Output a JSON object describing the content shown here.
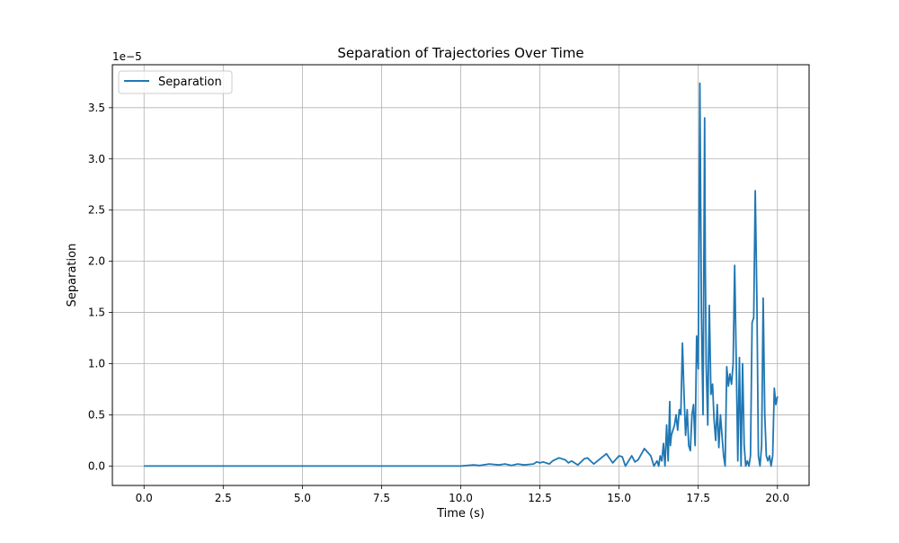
{
  "chart_data": {
    "type": "line",
    "title": "Separation of Trajectories Over Time",
    "xlabel": "Time (s)",
    "ylabel": "Separation",
    "offset_text": "1e−5",
    "scale": 1e-05,
    "xlim": [
      -1.0,
      21.0
    ],
    "ylim": [
      -0.19,
      3.92
    ],
    "xticks": [
      0.0,
      2.5,
      5.0,
      7.5,
      10.0,
      12.5,
      15.0,
      17.5,
      20.0
    ],
    "xtick_labels": [
      "0.0",
      "2.5",
      "5.0",
      "7.5",
      "10.0",
      "12.5",
      "15.0",
      "17.5",
      "20.0"
    ],
    "yticks": [
      0.0,
      0.5,
      1.0,
      1.5,
      2.0,
      2.5,
      3.0,
      3.5
    ],
    "ytick_labels": [
      "0.0",
      "0.5",
      "1.0",
      "1.5",
      "2.0",
      "2.5",
      "3.0",
      "3.5"
    ],
    "grid": true,
    "legend": {
      "position": "top-left",
      "entries": [
        "Separation"
      ]
    },
    "series": [
      {
        "name": "Separation",
        "color": "#1f77b4",
        "x": [
          0.0,
          2.5,
          5.0,
          7.5,
          9.0,
          10.0,
          10.4,
          10.6,
          10.9,
          11.2,
          11.4,
          11.6,
          11.8,
          12.0,
          12.3,
          12.4,
          12.5,
          12.6,
          12.8,
          12.9,
          13.1,
          13.3,
          13.4,
          13.5,
          13.7,
          13.9,
          14.0,
          14.2,
          14.4,
          14.6,
          14.8,
          15.0,
          15.1,
          15.2,
          15.4,
          15.5,
          15.6,
          15.8,
          16.0,
          16.1,
          16.2,
          16.25,
          16.3,
          16.35,
          16.4,
          16.45,
          16.5,
          16.55,
          16.6,
          16.62,
          16.65,
          16.7,
          16.75,
          16.8,
          16.85,
          16.9,
          16.95,
          17.0,
          17.05,
          17.1,
          17.15,
          17.2,
          17.25,
          17.3,
          17.35,
          17.4,
          17.45,
          17.5,
          17.55,
          17.6,
          17.65,
          17.7,
          17.72,
          17.75,
          17.8,
          17.82,
          17.85,
          17.9,
          17.95,
          18.0,
          18.05,
          18.1,
          18.15,
          18.2,
          18.25,
          18.3,
          18.35,
          18.4,
          18.45,
          18.5,
          18.55,
          18.6,
          18.65,
          18.7,
          18.75,
          18.8,
          18.85,
          18.9,
          18.95,
          19.0,
          19.05,
          19.1,
          19.15,
          19.2,
          19.25,
          19.3,
          19.35,
          19.4,
          19.45,
          19.5,
          19.55,
          19.6,
          19.65,
          19.7,
          19.75,
          19.8,
          19.85,
          19.9,
          19.95,
          20.0
        ],
        "y": [
          0.0,
          0.0,
          0.0,
          0.0,
          0.0,
          0.0,
          0.01,
          0.005,
          0.02,
          0.01,
          0.02,
          0.005,
          0.02,
          0.01,
          0.02,
          0.04,
          0.03,
          0.04,
          0.02,
          0.05,
          0.08,
          0.06,
          0.03,
          0.05,
          0.01,
          0.07,
          0.08,
          0.02,
          0.07,
          0.12,
          0.03,
          0.1,
          0.09,
          0.0,
          0.1,
          0.04,
          0.06,
          0.17,
          0.1,
          0.0,
          0.05,
          0.0,
          0.1,
          0.05,
          0.22,
          0.0,
          0.4,
          0.05,
          0.63,
          0.2,
          0.3,
          0.35,
          0.4,
          0.5,
          0.35,
          0.55,
          0.5,
          1.2,
          0.7,
          0.3,
          0.55,
          0.2,
          0.15,
          0.5,
          0.6,
          0.2,
          1.27,
          0.95,
          3.74,
          1.5,
          0.5,
          3.4,
          2.0,
          1.0,
          0.4,
          1.0,
          1.57,
          0.7,
          0.8,
          0.45,
          0.25,
          0.6,
          0.18,
          0.5,
          0.3,
          0.1,
          0.0,
          0.97,
          0.78,
          0.9,
          0.8,
          1.0,
          1.96,
          1.0,
          0.05,
          1.06,
          0.0,
          1.0,
          0.2,
          0.0,
          0.05,
          0.0,
          0.1,
          1.4,
          1.45,
          2.69,
          1.65,
          0.1,
          0.0,
          0.2,
          1.64,
          0.5,
          0.1,
          0.05,
          0.1,
          0.0,
          0.1,
          0.76,
          0.6,
          0.68
        ]
      }
    ]
  }
}
